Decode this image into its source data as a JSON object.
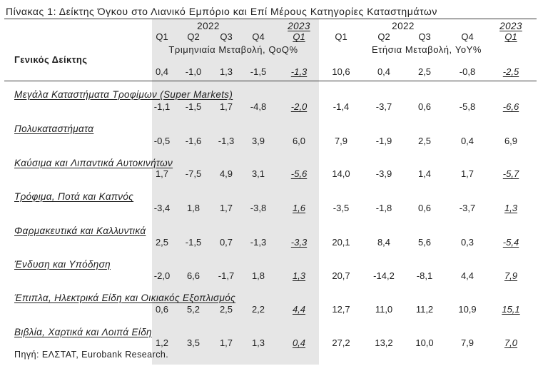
{
  "title": "Πίνακας 1: Δείκτης Όγκου στο Λιανικό Εμπόριο και Επί Μέρους Κατηγορίες Καταστημάτων",
  "header": {
    "qoq": {
      "year_2022": "2022",
      "year_2023": "2023",
      "quarters": [
        "Q1",
        "Q2",
        "Q3",
        "Q4",
        "Q1"
      ],
      "label": "Τριμηνιαία Μεταβολή, QoQ%"
    },
    "yoy": {
      "year_2022": "2022",
      "year_2023": "2023",
      "quarters": [
        "Q1",
        "Q2",
        "Q3",
        "Q4",
        "Q1"
      ],
      "label": "Ετήσια Μεταβολή, YoY%"
    }
  },
  "general_index": {
    "label": "Γενικός Δείκτης",
    "values": [
      "0,4",
      "-1,0",
      "1,3",
      "-1,5",
      "-1,3",
      "10,6",
      "0,4",
      "2,5",
      "-0,8",
      "-2,5"
    ]
  },
  "categories": [
    {
      "label": "Μεγάλα Καταστήματα Τροφίμων (Super Markets)",
      "values": [
        "-1,1",
        "-1,5",
        "1,7",
        "-4,8",
        "-2,0",
        "-1,4",
        "-3,7",
        "0,6",
        "-5,8",
        "-6,6"
      ]
    },
    {
      "label": "Πολυκαταστήματα",
      "values": [
        "-0,5",
        "-1,6",
        "-1,3",
        "3,9",
        "6,0",
        "7,9",
        "-1,9",
        "2,5",
        "0,4",
        "6,9"
      ]
    },
    {
      "label": "Καύσιμα και Λιπαντικά Αυτοκινήτων",
      "values": [
        "1,7",
        "-7,5",
        "4,9",
        "3,1",
        "-5,6",
        "14,0",
        "-3,9",
        "1,4",
        "1,7",
        "-5,7"
      ]
    },
    {
      "label": "Τρόφιμα, Ποτά και Καπνός",
      "values": [
        "-3,4",
        "1,8",
        "1,7",
        "-3,8",
        "1,6",
        "-3,5",
        "-1,8",
        "0,6",
        "-3,7",
        "1,3"
      ]
    },
    {
      "label": "Φαρμακευτικά και Καλλυντικά",
      "values": [
        "2,5",
        "-1,5",
        "0,7",
        "-1,3",
        "-3,3",
        "20,1",
        "8,4",
        "5,6",
        "0,3",
        "-5,4"
      ]
    },
    {
      "label": "Ένδυση και Υπόδηση",
      "values": [
        "-2,0",
        "6,6",
        "-1,7",
        "1,8",
        "1,3",
        "20,7",
        "-14,2",
        "-8,1",
        "4,4",
        "7,9"
      ]
    },
    {
      "label": "Έπιπλα, Ηλεκτρικά Είδη και Οικιακός Εξοπλισμός",
      "values": [
        "0,6",
        "5,2",
        "2,5",
        "2,2",
        "4,4",
        "12,7",
        "11,0",
        "11,2",
        "10,9",
        "15,1"
      ]
    },
    {
      "label": "Βιβλία, Χαρτικά και Λοιπά Είδη",
      "values": [
        "1,2",
        "3,5",
        "1,7",
        "1,3",
        "0,4",
        "27,2",
        "13,2",
        "10,0",
        "7,9",
        "7,0"
      ]
    }
  ],
  "source": "Πηγή: ΕΛΣΤΑΤ, Eurobank Research.",
  "colors": {
    "shade": "#e6e6e6",
    "text": "#1e1e1e",
    "rule": "#3a3a3a"
  }
}
